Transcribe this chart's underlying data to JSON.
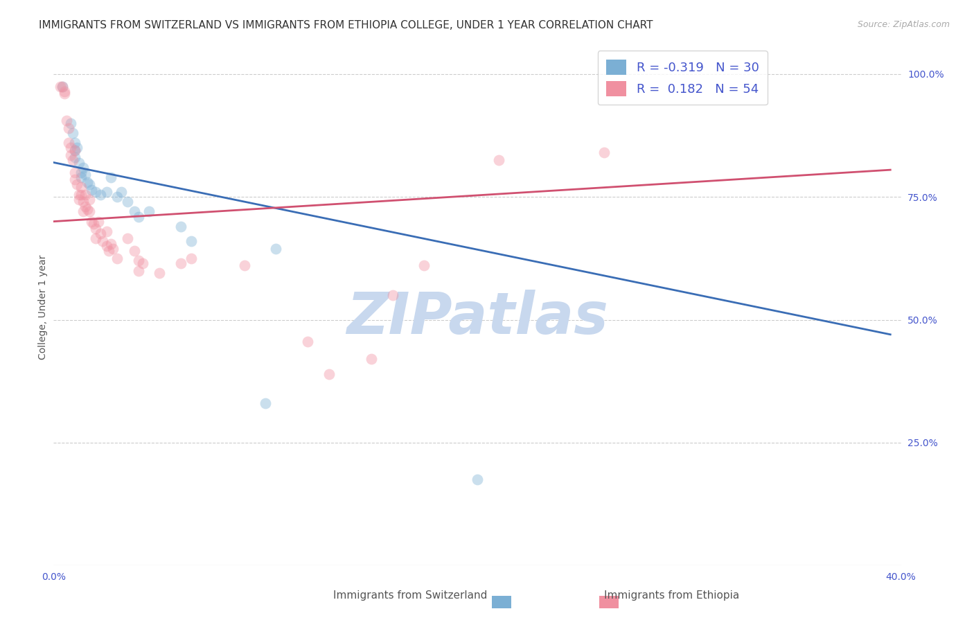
{
  "title": "IMMIGRANTS FROM SWITZERLAND VS IMMIGRANTS FROM ETHIOPIA COLLEGE, UNDER 1 YEAR CORRELATION CHART",
  "source": "Source: ZipAtlas.com",
  "ylabel": "College, Under 1 year",
  "watermark": "ZIPatlas",
  "legend_line1": "R = -0.319   N = 30",
  "legend_line2": "R =  0.182   N = 54",
  "legend_label1": "Immigrants from Switzerland",
  "legend_label2": "Immigrants from Ethiopia",
  "switzerland_scatter": [
    [
      0.004,
      0.975
    ],
    [
      0.008,
      0.9
    ],
    [
      0.009,
      0.88
    ],
    [
      0.01,
      0.86
    ],
    [
      0.01,
      0.845
    ],
    [
      0.01,
      0.83
    ],
    [
      0.011,
      0.85
    ],
    [
      0.012,
      0.82
    ],
    [
      0.013,
      0.8
    ],
    [
      0.013,
      0.79
    ],
    [
      0.014,
      0.81
    ],
    [
      0.015,
      0.795
    ],
    [
      0.016,
      0.78
    ],
    [
      0.017,
      0.775
    ],
    [
      0.018,
      0.765
    ],
    [
      0.02,
      0.76
    ],
    [
      0.022,
      0.755
    ],
    [
      0.025,
      0.76
    ],
    [
      0.027,
      0.79
    ],
    [
      0.03,
      0.75
    ],
    [
      0.032,
      0.76
    ],
    [
      0.035,
      0.74
    ],
    [
      0.038,
      0.72
    ],
    [
      0.04,
      0.71
    ],
    [
      0.045,
      0.72
    ],
    [
      0.06,
      0.69
    ],
    [
      0.065,
      0.66
    ],
    [
      0.105,
      0.645
    ],
    [
      0.1,
      0.33
    ],
    [
      0.2,
      0.175
    ]
  ],
  "ethiopia_scatter": [
    [
      0.003,
      0.975
    ],
    [
      0.004,
      0.975
    ],
    [
      0.005,
      0.965
    ],
    [
      0.005,
      0.96
    ],
    [
      0.006,
      0.905
    ],
    [
      0.007,
      0.89
    ],
    [
      0.007,
      0.86
    ],
    [
      0.008,
      0.85
    ],
    [
      0.008,
      0.835
    ],
    [
      0.009,
      0.825
    ],
    [
      0.01,
      0.845
    ],
    [
      0.01,
      0.8
    ],
    [
      0.01,
      0.785
    ],
    [
      0.011,
      0.775
    ],
    [
      0.012,
      0.755
    ],
    [
      0.012,
      0.745
    ],
    [
      0.013,
      0.77
    ],
    [
      0.013,
      0.755
    ],
    [
      0.014,
      0.74
    ],
    [
      0.014,
      0.72
    ],
    [
      0.015,
      0.755
    ],
    [
      0.015,
      0.73
    ],
    [
      0.016,
      0.725
    ],
    [
      0.017,
      0.745
    ],
    [
      0.017,
      0.72
    ],
    [
      0.018,
      0.7
    ],
    [
      0.019,
      0.695
    ],
    [
      0.02,
      0.685
    ],
    [
      0.02,
      0.665
    ],
    [
      0.021,
      0.7
    ],
    [
      0.022,
      0.675
    ],
    [
      0.023,
      0.66
    ],
    [
      0.025,
      0.68
    ],
    [
      0.025,
      0.65
    ],
    [
      0.026,
      0.64
    ],
    [
      0.027,
      0.655
    ],
    [
      0.028,
      0.645
    ],
    [
      0.03,
      0.625
    ],
    [
      0.035,
      0.665
    ],
    [
      0.038,
      0.64
    ],
    [
      0.04,
      0.62
    ],
    [
      0.04,
      0.6
    ],
    [
      0.042,
      0.615
    ],
    [
      0.05,
      0.595
    ],
    [
      0.06,
      0.615
    ],
    [
      0.065,
      0.625
    ],
    [
      0.09,
      0.61
    ],
    [
      0.12,
      0.455
    ],
    [
      0.13,
      0.39
    ],
    [
      0.15,
      0.42
    ],
    [
      0.16,
      0.55
    ],
    [
      0.175,
      0.61
    ],
    [
      0.21,
      0.825
    ],
    [
      0.26,
      0.84
    ]
  ],
  "swiss_line_x": [
    0.0,
    0.395
  ],
  "swiss_line_y": [
    0.82,
    0.47
  ],
  "ethiopia_line_x": [
    0.0,
    0.395
  ],
  "ethiopia_line_y": [
    0.7,
    0.805
  ],
  "xlim": [
    0.0,
    0.4
  ],
  "ylim": [
    0.0,
    1.05
  ],
  "xticks_show": [
    0.0,
    0.4
  ],
  "xticklabels_show": [
    "0.0%",
    "40.0%"
  ],
  "xticks_minor": [
    0.1,
    0.2,
    0.3
  ],
  "yticks_right": [
    0.25,
    0.5,
    0.75,
    1.0
  ],
  "ytick_labels_right": [
    "25.0%",
    "50.0%",
    "75.0%",
    "100.0%"
  ],
  "scatter_size": 130,
  "scatter_alpha": 0.4,
  "swiss_color": "#7bafd4",
  "ethiopia_color": "#f090a0",
  "swiss_line_color": "#3a6db5",
  "ethiopia_line_color": "#d05070",
  "bg_color": "#ffffff",
  "grid_color": "#cccccc",
  "title_fontsize": 11,
  "axis_label_fontsize": 10,
  "tick_fontsize": 10,
  "source_fontsize": 9,
  "watermark_color": "#c8d8ee",
  "watermark_fontsize": 60,
  "tick_color": "#4455cc"
}
